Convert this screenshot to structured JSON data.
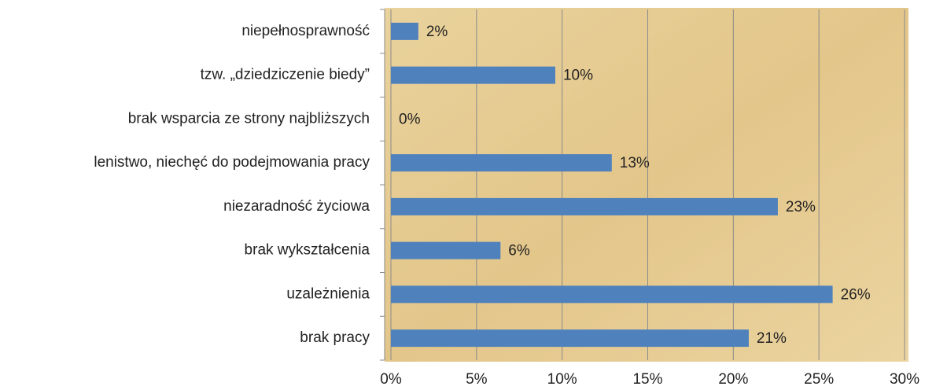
{
  "chart_data": {
    "type": "bar",
    "orientation": "horizontal",
    "categories": [
      "niepełnosprawność",
      "tzw. „dziedziczenie biedy”",
      "brak wsparcia ze strony najbliższych",
      "lenistwo, niechęć do podejmowania pracy",
      "niezaradność życiowa",
      "brak wykształcenia",
      "uzależnienia",
      "brak pracy"
    ],
    "values": [
      1.6,
      9.6,
      0,
      12.9,
      22.6,
      6.4,
      25.8,
      20.9
    ],
    "value_labels": [
      "2%",
      "10%",
      "0%",
      "13%",
      "23%",
      "6%",
      "26%",
      "21%"
    ],
    "color": "#4f81bd",
    "xlim": [
      0,
      30
    ],
    "xticks": [
      {
        "value": 0,
        "label": "0%"
      },
      {
        "value": 5,
        "label": "5%"
      },
      {
        "value": 10,
        "label": "10%"
      },
      {
        "value": 15,
        "label": "15%"
      },
      {
        "value": 20,
        "label": "20%"
      },
      {
        "value": 25,
        "label": "25%"
      },
      {
        "value": 30,
        "label": "30%"
      }
    ],
    "grid": true
  }
}
